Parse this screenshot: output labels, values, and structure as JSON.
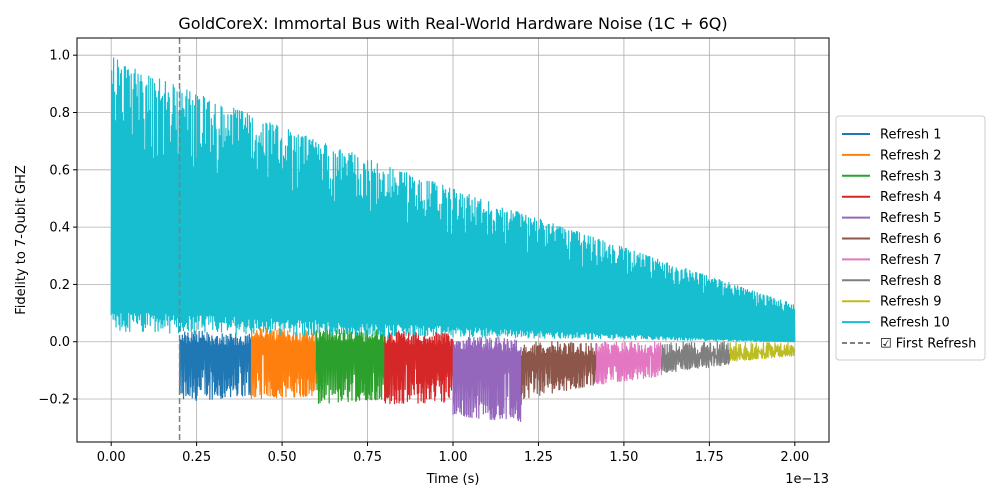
{
  "chart_data": {
    "type": "line",
    "title": "GoldCoreX: Immortal Bus with Real-World Hardware Noise (1C + 6Q)",
    "xlabel": "Time (s)",
    "ylabel": "Fidelity to 7-Qubit GHZ",
    "x_offset_label": "1e−13",
    "xlim": [
      -0.1,
      2.1
    ],
    "ylim": [
      -0.35,
      1.06
    ],
    "x_scale_multiplier": 1e-13,
    "xticks": [
      0.0,
      0.25,
      0.5,
      0.75,
      1.0,
      1.25,
      1.5,
      1.75,
      2.0
    ],
    "xtick_labels": [
      "0.00",
      "0.25",
      "0.50",
      "0.75",
      "1.00",
      "1.25",
      "1.50",
      "1.75",
      "2.00"
    ],
    "yticks": [
      -0.2,
      0.0,
      0.2,
      0.4,
      0.6,
      0.8,
      1.0
    ],
    "ytick_labels": [
      "−0.2",
      "0.0",
      "0.2",
      "0.4",
      "0.6",
      "0.8",
      "1.0"
    ],
    "grid": true,
    "legend_position": "outside-right",
    "reference_line": {
      "x": 0.2,
      "label": "☑ First Refresh",
      "color": "#7f7f7f",
      "style": "dashed"
    },
    "series": [
      {
        "name": "Refresh 1",
        "color": "#1f77b4",
        "x_range": [
          0.2,
          0.41
        ],
        "low": [
          -0.21,
          -0.19
        ],
        "high": [
          0.04,
          0.03
        ]
      },
      {
        "name": "Refresh 2",
        "color": "#ff7f0e",
        "x_range": [
          0.41,
          0.6
        ],
        "low": [
          -0.2,
          -0.19
        ],
        "high": [
          0.05,
          0.04
        ]
      },
      {
        "name": "Refresh 3",
        "color": "#2ca02c",
        "x_range": [
          0.6,
          0.8
        ],
        "low": [
          -0.22,
          -0.2
        ],
        "high": [
          0.05,
          0.04
        ]
      },
      {
        "name": "Refresh 4",
        "color": "#d62728",
        "x_range": [
          0.8,
          1.0
        ],
        "low": [
          -0.22,
          -0.21
        ],
        "high": [
          0.04,
          0.03
        ]
      },
      {
        "name": "Refresh 5",
        "color": "#9467bd",
        "x_range": [
          1.0,
          1.2
        ],
        "low": [
          -0.26,
          -0.28
        ],
        "high": [
          0.02,
          0.01
        ]
      },
      {
        "name": "Refresh 6",
        "color": "#8c564b",
        "x_range": [
          1.2,
          1.42
        ],
        "low": [
          -0.2,
          -0.15
        ],
        "high": [
          0.0,
          0.0
        ]
      },
      {
        "name": "Refresh 7",
        "color": "#e377c2",
        "x_range": [
          1.42,
          1.61
        ],
        "low": [
          -0.15,
          -0.12
        ],
        "high": [
          0.0,
          0.0
        ]
      },
      {
        "name": "Refresh 8",
        "color": "#7f7f7f",
        "x_range": [
          1.61,
          1.81
        ],
        "low": [
          -0.11,
          -0.08
        ],
        "high": [
          0.0,
          0.0
        ]
      },
      {
        "name": "Refresh 9",
        "color": "#bcbd22",
        "x_range": [
          1.81,
          2.0
        ],
        "low": [
          -0.07,
          -0.05
        ],
        "high": [
          0.0,
          0.0
        ]
      },
      {
        "name": "Refresh 10",
        "color": "#17becf",
        "x_range": [
          0.0,
          2.0
        ],
        "envelope_top": [
          1.0,
          0.13
        ],
        "baseline": [
          0.03,
          0.0
        ]
      }
    ]
  }
}
